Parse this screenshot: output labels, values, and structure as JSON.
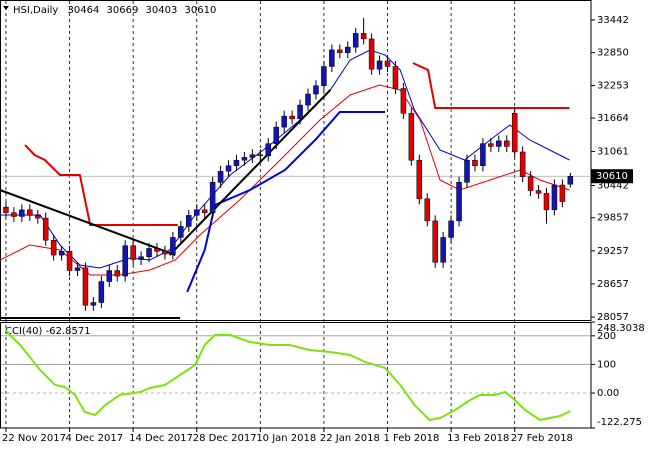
{
  "chart_data": [
    {
      "type": "candlestick",
      "title": "HSI,Daily",
      "categories": [
        "22 Nov 2017",
        null,
        null,
        null,
        null,
        null,
        null,
        null,
        "4 Dec 2017",
        null,
        null,
        null,
        null,
        null,
        null,
        null,
        "14 Dec 2017",
        null,
        null,
        null,
        null,
        null,
        null,
        null,
        "28 Dec 2017",
        null,
        null,
        null,
        null,
        null,
        null,
        null,
        "10 Jan 2018",
        null,
        null,
        null,
        null,
        null,
        null,
        null,
        "22 Jan 2018",
        null,
        null,
        null,
        null,
        null,
        null,
        null,
        "1 Feb 2018",
        null,
        null,
        null,
        null,
        null,
        null,
        null,
        "13 Feb 2018",
        null,
        null,
        null,
        null,
        null,
        null,
        null,
        "27 Feb 2018",
        null,
        null,
        null,
        null,
        null,
        null,
        null
      ],
      "open": [
        30050,
        29950,
        29880,
        30000,
        29900,
        29850,
        29450,
        29180,
        29250,
        28900,
        28950,
        28270,
        28320,
        28700,
        28900,
        28800,
        29350,
        29100,
        29150,
        29300,
        29250,
        29200,
        29500,
        29700,
        29900,
        30000,
        29950,
        30500,
        30700,
        30800,
        30900,
        30950,
        31000,
        30980,
        31200,
        31500,
        31700,
        31650,
        31900,
        32100,
        32250,
        32600,
        32900,
        32850,
        32950,
        33200,
        33100,
        32550,
        32700,
        32600,
        32200,
        31750,
        30900,
        30200,
        29800,
        29050,
        29500,
        29800,
        30500,
        30900,
        30800,
        31200,
        31150,
        31250,
        31750,
        31050,
        30600,
        30350,
        30300,
        30000,
        30450,
        30464
      ],
      "high": [
        30150,
        30050,
        30100,
        30100,
        30000,
        29950,
        29550,
        29350,
        29350,
        29050,
        29050,
        28420,
        28800,
        29000,
        29000,
        29450,
        29450,
        29250,
        29400,
        29400,
        29350,
        29600,
        29800,
        30000,
        30100,
        30100,
        30600,
        30800,
        30900,
        31000,
        31050,
        31100,
        31100,
        31300,
        31600,
        31800,
        31800,
        32000,
        32200,
        32350,
        32700,
        33000,
        33000,
        33050,
        33300,
        33480,
        33200,
        32800,
        32800,
        32700,
        32300,
        31850,
        31000,
        30300,
        29900,
        29600,
        29900,
        30600,
        31000,
        31000,
        31300,
        31300,
        31350,
        31350,
        31850,
        31150,
        30700,
        30450,
        30400,
        30550,
        30550,
        30669
      ],
      "low": [
        29850,
        29780,
        29780,
        29800,
        29750,
        29350,
        29080,
        29080,
        28800,
        28800,
        28170,
        28170,
        28220,
        28600,
        28700,
        28700,
        29000,
        29000,
        29050,
        29150,
        29100,
        29100,
        29400,
        29600,
        29800,
        29850,
        29850,
        30400,
        30600,
        30700,
        30800,
        30850,
        30880,
        30880,
        31100,
        31400,
        31550,
        31550,
        31800,
        32000,
        32150,
        32500,
        32750,
        32750,
        32850,
        33000,
        32450,
        32450,
        32500,
        32100,
        31650,
        30800,
        30100,
        29700,
        28950,
        28950,
        29400,
        29700,
        30400,
        30700,
        30700,
        31050,
        31050,
        31050,
        30950,
        30500,
        30250,
        30200,
        29750,
        29900,
        30050,
        30403
      ],
      "close": [
        29950,
        29880,
        30000,
        29900,
        29850,
        29450,
        29180,
        29250,
        28900,
        28950,
        28270,
        28320,
        28700,
        28900,
        28800,
        29350,
        29100,
        29150,
        29300,
        29250,
        29200,
        29500,
        29700,
        29900,
        30000,
        29950,
        30500,
        30700,
        30800,
        30900,
        30950,
        31000,
        30980,
        31200,
        31500,
        31700,
        31650,
        31900,
        32100,
        32250,
        32600,
        32900,
        32850,
        32950,
        33200,
        33100,
        32550,
        32700,
        32600,
        32200,
        31750,
        30900,
        30200,
        29800,
        29050,
        29500,
        29800,
        30500,
        30900,
        30800,
        31200,
        31150,
        31250,
        31150,
        31050,
        30600,
        30350,
        30300,
        30000,
        30450,
        30150,
        30610
      ],
      "bull_color": "#1414b4",
      "bear_color": "#e00000",
      "xlim": [
        -0.75,
        73.6
      ],
      "ylim": [
        28003,
        33805
      ],
      "yticks": [
        33442,
        32850,
        32253,
        31664,
        31061,
        30442,
        29857,
        29257,
        28657,
        28057
      ],
      "grid": "x",
      "lines": [
        {
          "color": "#0000cc",
          "width": 1,
          "x": [
            -0.75,
            4.3,
            6.8,
            9.3,
            11.8,
            15.6,
            18.1,
            20.6,
            23.8,
            28.2,
            33.2,
            37.0,
            40.8,
            43.3,
            45.8,
            47.7,
            49.6,
            51.4,
            54.6,
            57.7,
            60.9,
            63.4,
            65.9,
            68.4,
            70.9
          ],
          "values": [
            29907,
            29907,
            29363,
            29000,
            28946,
            29127,
            29091,
            29272,
            29907,
            30632,
            31176,
            31629,
            32173,
            32717,
            32898,
            32807,
            32536,
            31810,
            31085,
            30904,
            31266,
            31538,
            31266,
            31085,
            30904
          ]
        },
        {
          "color": "#e00000",
          "width": 1,
          "x": [
            -0.75,
            3.0,
            6.8,
            10.6,
            14.3,
            18.1,
            21.3,
            24.4,
            29.4,
            34.5,
            39.5,
            43.3,
            47.0,
            49.6,
            52.1,
            54.6,
            57.1,
            60.9,
            64.7,
            67.2,
            70.9
          ],
          "values": [
            29091,
            29363,
            29272,
            28819,
            28819,
            28910,
            29091,
            29544,
            30179,
            30904,
            31629,
            32082,
            32264,
            32173,
            31629,
            30541,
            30360,
            30541,
            30723,
            30541,
            30360
          ]
        },
        {
          "color": "#0000dd",
          "width": 2,
          "x": [
            22.8,
            25.0,
            26.3,
            30.7,
            35.1,
            38.9,
            42.0,
            47.7
          ],
          "values": [
            28511,
            29272,
            30088,
            30360,
            30723,
            31266,
            31774,
            31774
          ]
        },
        {
          "color": "#e00000",
          "width": 2,
          "x": [
            2.4,
            3.6,
            4.9,
            6.8,
            9.3,
            10.6,
            21.6
          ],
          "values": [
            31176,
            30994,
            30904,
            30632,
            30632,
            29726,
            29726
          ]
        },
        {
          "color": "#e00000",
          "width": 2,
          "x": [
            51.2,
            53.1,
            54.0,
            70.9
          ],
          "values": [
            32662,
            32536,
            31847,
            31847
          ]
        },
        {
          "color": "#000000",
          "width": 2,
          "x": [
            -0.75,
            21.3
          ],
          "values": [
            30360,
            29181
          ]
        },
        {
          "color": "#000000",
          "width": 2,
          "x": [
            20.6,
            40.8
          ],
          "values": [
            29181,
            32173
          ]
        },
        {
          "color": "#000000",
          "width": 2,
          "x": [
            -0.75,
            21.9
          ],
          "values": [
            28039,
            28039
          ]
        }
      ]
    },
    {
      "type": "line",
      "title": "CCI(40) -62.8571",
      "x": [
        0,
        0.5,
        1.8,
        4.3,
        6.2,
        7.4,
        8.7,
        9.9,
        11.2,
        12.5,
        14.3,
        16.9,
        18.1,
        20.0,
        21.9,
        23.8,
        25.0,
        26.3,
        28.2,
        30.7,
        33.2,
        35.7,
        38.2,
        40.8,
        43.3,
        45.2,
        47.7,
        49.6,
        51.4,
        53.3,
        54.6,
        56.5,
        58.4,
        59.6,
        61.5,
        62.8,
        64.0,
        65.3,
        67.2,
        68.4,
        69.7,
        71.0
      ],
      "values": [
        220.3,
        202.9,
        167.9,
        80.5,
        28.1,
        21.1,
        -6.9,
        -66.3,
        -76.8,
        -41.9,
        -6.9,
        3.6,
        17.6,
        28.1,
        63.0,
        98.0,
        167.9,
        202.9,
        202.9,
        178.4,
        167.9,
        167.9,
        150.4,
        143.4,
        132.9,
        108.5,
        87.5,
        28.1,
        -41.9,
        -94.3,
        -87.3,
        -59.3,
        -24.4,
        -6.9,
        -6.9,
        3.6,
        -24.4,
        -59.3,
        -94.3,
        -87.3,
        -80.3,
        -62.9
      ],
      "color": "#80e010",
      "xlim": [
        -0.75,
        73.6
      ],
      "ylim": [
        -122.275,
        248.3038
      ],
      "yticks": [
        248.3038,
        200,
        100,
        {
          "value": 0,
          "label": "0.00"
        },
        -122.275
      ]
    }
  ]
}
